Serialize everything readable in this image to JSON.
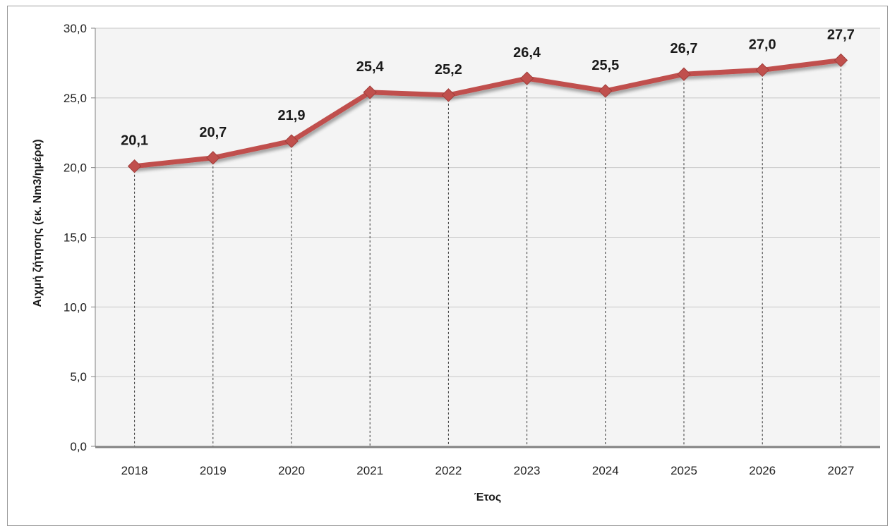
{
  "chart_data": {
    "type": "line",
    "title": "",
    "xlabel": "Έτος",
    "ylabel": "Αιχμή ζήτησης (εκ. Nm3/ημέρα)",
    "categories": [
      "2018",
      "2019",
      "2020",
      "2021",
      "2022",
      "2023",
      "2024",
      "2025",
      "2026",
      "2027"
    ],
    "series": [
      {
        "values": [
          20.1,
          20.7,
          21.9,
          25.4,
          25.2,
          26.4,
          25.5,
          26.7,
          27.0,
          27.7
        ],
        "labels": [
          "20,1",
          "20,7",
          "21,9",
          "25,4",
          "25,2",
          "26,4",
          "25,5",
          "26,7",
          "27,0",
          "27,7"
        ]
      }
    ],
    "ylim": [
      0,
      30
    ],
    "yticks": [
      "0,0",
      "5,0",
      "10,0",
      "15,0",
      "20,0",
      "25,0",
      "30,0"
    ],
    "ytick_values": [
      0,
      5,
      10,
      15,
      20,
      25,
      30
    ],
    "grid": true,
    "drop_lines": true,
    "legend": "none",
    "colors": {
      "line": "#c0504d",
      "marker": "#c0504d",
      "grid": "#c8c8c8",
      "plot_background": "#f4f4f4",
      "axis": "#808080"
    }
  }
}
